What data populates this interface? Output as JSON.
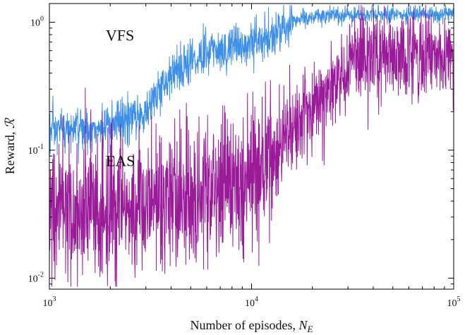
{
  "chart_data": {
    "type": "line",
    "title": "",
    "xlabel": "Number of episodes, ",
    "xlabel_symbol": "N",
    "xlabel_subscript": "E",
    "ylabel": "Reward, ",
    "ylabel_symbol": "ℛ",
    "x_scale": "log",
    "y_scale": "log",
    "xlim": [
      1000,
      100000
    ],
    "ylim": [
      0.0082,
      1.4
    ],
    "grid": false,
    "x_ticks": [
      {
        "value": 1000,
        "base": "10",
        "exp": "3"
      },
      {
        "value": 10000,
        "base": "10",
        "exp": "4"
      },
      {
        "value": 100000,
        "base": "10",
        "exp": "5"
      }
    ],
    "y_ticks": [
      {
        "value": 0.01,
        "base": "10",
        "exp": "-2"
      },
      {
        "value": 0.1,
        "base": "10",
        "exp": "-1"
      },
      {
        "value": 1,
        "base": "10",
        "exp": "0"
      }
    ],
    "series": [
      {
        "name": "VFS",
        "color": "#3d8fe8",
        "label_x": 1900,
        "label_y": 0.72,
        "x": [
          1000,
          2000,
          3000,
          4000,
          5000,
          7000,
          10000,
          12000,
          13500,
          15000,
          18000,
          22000,
          30000,
          50000,
          100000
        ],
        "y": [
          0.14,
          0.15,
          0.2,
          0.4,
          0.5,
          0.62,
          0.68,
          0.75,
          0.8,
          0.97,
          1.08,
          1.12,
          1.14,
          1.15,
          1.17
        ],
        "noise": 0.09
      },
      {
        "name": "EAS",
        "color": "#9a1a9a",
        "label_x": 1900,
        "label_y": 0.075,
        "x": [
          1000,
          2000,
          3000,
          4000,
          5000,
          7000,
          10000,
          12000,
          14000,
          16000,
          20000,
          25000,
          29000,
          31000,
          40000,
          60000,
          100000
        ],
        "y": [
          0.033,
          0.035,
          0.038,
          0.041,
          0.044,
          0.05,
          0.06,
          0.071,
          0.1,
          0.16,
          0.22,
          0.32,
          0.38,
          0.5,
          0.55,
          0.54,
          0.56
        ],
        "noise": 0.17
      }
    ]
  }
}
